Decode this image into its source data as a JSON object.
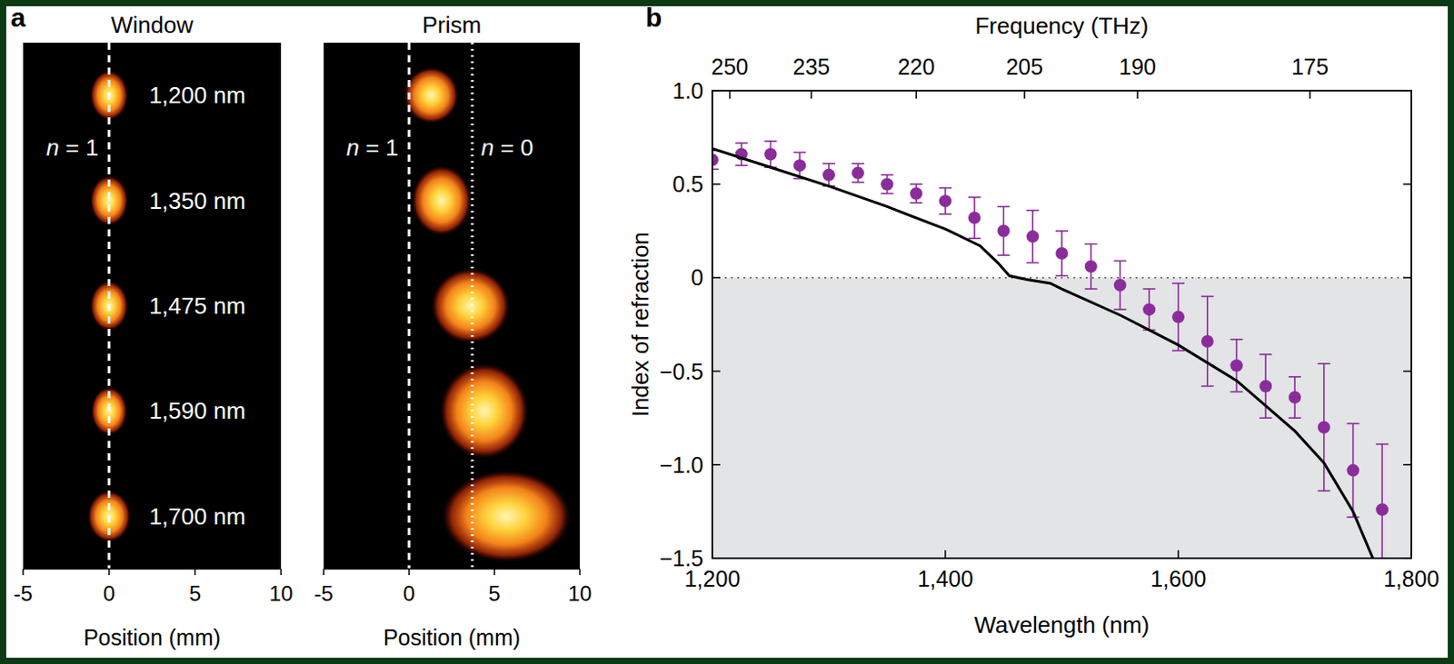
{
  "chart_data": [
    {
      "type": "beam_image",
      "panel_label": "a",
      "title": "Window",
      "x_label": "Position (mm)",
      "xlim": [
        -5,
        10
      ],
      "xticks": [
        -5,
        0,
        5,
        10
      ],
      "categories": [
        "1,200 nm",
        "1,350 nm",
        "1,475 nm",
        "1,590 nm",
        "1,700 nm"
      ],
      "x": [
        0,
        0,
        0,
        0,
        0
      ],
      "spot_width": [
        2.2,
        2.2,
        2.2,
        2.1,
        2.5
      ],
      "spot_height": [
        2.9,
        2.9,
        2.9,
        2.8,
        3.0
      ],
      "lines": [
        {
          "x": 0,
          "label": "n = 1",
          "line_style": "dashed"
        }
      ]
    },
    {
      "type": "beam_image",
      "title": "Prism",
      "x_label": "Position (mm)",
      "xlim": [
        -5,
        10
      ],
      "xticks": [
        -5,
        0,
        5,
        10
      ],
      "x": [
        1.3,
        1.9,
        3.6,
        4.4,
        5.7
      ],
      "spot_width": [
        3.2,
        3.5,
        4.6,
        5.2,
        7.6
      ],
      "spot_height": [
        3.3,
        4.1,
        4.4,
        5.6,
        5.4
      ],
      "lines": [
        {
          "x": 0,
          "label": "n = 1",
          "line_style": "dashed"
        },
        {
          "x": 3.7,
          "label": "n = 0",
          "line_style": "dotted"
        }
      ]
    },
    {
      "type": "scatter",
      "panel_label": "b",
      "x_label": "Wavelength (nm)",
      "y_label": "Index of refraction",
      "x2_label": "Frequency (THz)",
      "xlim": [
        1200,
        1800
      ],
      "ylim": [
        -1.5,
        1.0
      ],
      "xticks": [
        {
          "value": 1200,
          "label": "1,200"
        },
        {
          "value": 1400,
          "label": "1,400"
        },
        {
          "value": 1600,
          "label": "1,600"
        },
        {
          "value": 1800,
          "label": "1,800"
        }
      ],
      "x2ticks": [
        {
          "value": 1215,
          "label": "250"
        },
        {
          "value": 1285,
          "label": "235"
        },
        {
          "value": 1375,
          "label": "220"
        },
        {
          "value": 1468,
          "label": "205"
        },
        {
          "value": 1565,
          "label": "190"
        },
        {
          "value": 1713,
          "label": "175"
        }
      ],
      "yticks": [
        {
          "value": -1.5,
          "label": "−1.5"
        },
        {
          "value": -1,
          "label": "−1.0"
        },
        {
          "value": -0.5,
          "label": "−0.5"
        },
        0,
        0.5,
        {
          "value": 1,
          "label": "1.0"
        }
      ],
      "shaded": {
        "from": -1.5,
        "to": 0,
        "color": "#e3e4e6"
      },
      "hlines": [
        {
          "y": 0,
          "line_style": "dotted"
        }
      ],
      "series": [
        {
          "type": "scatter",
          "marker": "circle",
          "color": "#8b2c9b",
          "x": [
            1200,
            1225,
            1250,
            1275,
            1300,
            1325,
            1350,
            1375,
            1400,
            1425,
            1450,
            1475,
            1500,
            1525,
            1550,
            1575,
            1600,
            1625,
            1650,
            1675,
            1700,
            1725,
            1750,
            1775
          ],
          "values": [
            0.63,
            0.66,
            0.66,
            0.6,
            0.55,
            0.56,
            0.5,
            0.45,
            0.41,
            0.32,
            0.25,
            0.22,
            0.13,
            0.06,
            -0.04,
            -0.17,
            -0.21,
            -0.34,
            -0.47,
            -0.58,
            -0.64,
            -0.8,
            -1.03,
            -1.24
          ],
          "errors": [
            0.05,
            0.06,
            0.07,
            0.07,
            0.06,
            0.05,
            0.05,
            0.05,
            0.07,
            0.11,
            0.13,
            0.14,
            0.12,
            0.12,
            0.13,
            0.11,
            0.18,
            0.24,
            0.14,
            0.17,
            0.11,
            0.34,
            0.25,
            0.35
          ]
        },
        {
          "type": "line",
          "line_style": "solid",
          "color": "#000000",
          "x": [
            1200,
            1250,
            1300,
            1350,
            1400,
            1430,
            1445,
            1455,
            1470,
            1490,
            1500,
            1550,
            1600,
            1650,
            1700,
            1725,
            1750,
            1767
          ],
          "values": [
            0.69,
            0.59,
            0.49,
            0.38,
            0.26,
            0.17,
            0.08,
            0.01,
            -0.01,
            -0.03,
            -0.06,
            -0.2,
            -0.36,
            -0.55,
            -0.82,
            -0.99,
            -1.25,
            -1.5
          ]
        }
      ]
    }
  ]
}
